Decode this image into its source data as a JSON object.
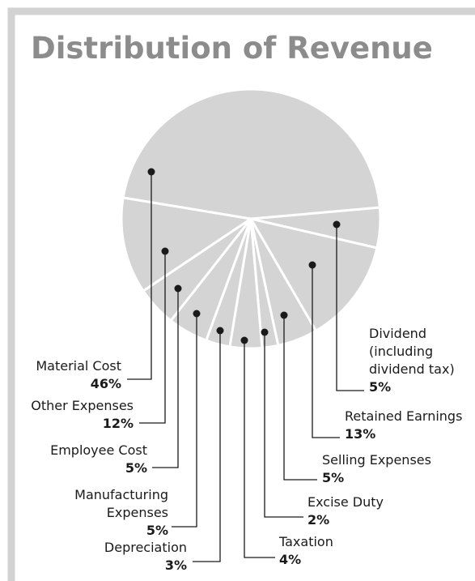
{
  "chart_data": {
    "type": "pie",
    "title": "Distribution of Revenue",
    "categories": [
      "Dividend (including dividend tax)",
      "Retained Earnings",
      "Selling Expenses",
      "Excise Duty",
      "Taxation",
      "Depreciation",
      "Manufacturing Expenses",
      "Employee Cost",
      "Other Expenses",
      "Material Cost"
    ],
    "values": [
      5,
      13,
      5,
      2,
      4,
      3,
      5,
      5,
      12,
      46
    ],
    "value_labels": [
      "5%",
      "13%",
      "5%",
      "2%",
      "4%",
      "3%",
      "5%",
      "5%",
      "12%",
      "46%"
    ],
    "color": "#d4d4d4"
  }
}
